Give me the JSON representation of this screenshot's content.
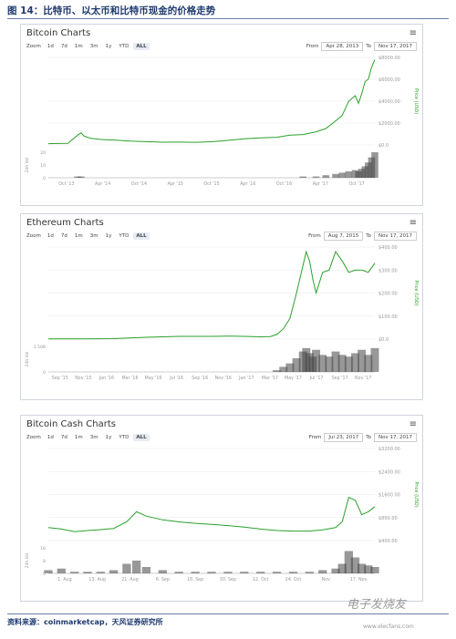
{
  "figure_title": "图 14：比特币、以太币和比特币现金的价格走势",
  "source": "资料来源：coinmarketcap，天风证券研究所",
  "watermark": "电子发烧友",
  "watermark_url": "www.elecfans.com",
  "colors": {
    "line": "#2aa02a",
    "volume": "#444444",
    "axis": "#999999",
    "grid": "#e8e8e8",
    "price_label": "#2aa02a"
  },
  "chart_data": [
    {
      "type": "line",
      "title": "Bitcoin Charts",
      "zoom_label": "Zoom",
      "zoom_buttons": [
        "1d",
        "7d",
        "1m",
        "3m",
        "1y",
        "YTD",
        "ALL"
      ],
      "zoom_active": "ALL",
      "from_label": "From",
      "from": "Apr 28, 2013",
      "to_label": "To",
      "to": "Nov 17, 2017",
      "ylabel": "Price (USD)",
      "y_ticks": [
        "$0.0",
        "$2000.00",
        "$4000.00",
        "$6000.00",
        "$8000.00"
      ],
      "ylim": [
        0,
        8000
      ],
      "vol_label": "24h Vol",
      "vol_ticks": [
        "0",
        "10",
        "20"
      ],
      "x_ticks": [
        "Oct '13",
        "Apr '14",
        "Oct '14",
        "Apr '15",
        "Oct '15",
        "Apr '16",
        "Oct '16",
        "Apr '17",
        "Oct '17"
      ],
      "x": [
        0,
        0.03,
        0.06,
        0.09,
        0.1,
        0.11,
        0.13,
        0.16,
        0.2,
        0.25,
        0.3,
        0.35,
        0.4,
        0.45,
        0.5,
        0.55,
        0.6,
        0.65,
        0.7,
        0.74,
        0.78,
        0.82,
        0.85,
        0.88,
        0.9,
        0.92,
        0.94,
        0.95,
        0.96,
        0.97,
        0.98,
        0.99,
        1.0
      ],
      "values": [
        120,
        130,
        150,
        900,
        1100,
        800,
        600,
        500,
        450,
        350,
        300,
        250,
        260,
        240,
        290,
        420,
        560,
        650,
        700,
        900,
        950,
        1200,
        1500,
        2200,
        2700,
        4000,
        4500,
        3800,
        4700,
        5800,
        6000,
        7100,
        7800
      ],
      "volume": [
        0,
        0,
        0,
        1,
        1,
        0,
        0,
        0,
        0,
        0,
        0,
        0,
        0,
        0,
        0,
        0,
        0,
        0,
        0,
        0,
        1,
        1,
        2,
        3,
        4,
        5,
        6,
        5,
        7,
        9,
        12,
        16,
        20
      ],
      "vlim": [
        0,
        20
      ]
    },
    {
      "type": "line",
      "title": "Ethereum Charts",
      "zoom_label": "Zoom",
      "zoom_buttons": [
        "1d",
        "7d",
        "1m",
        "3m",
        "1y",
        "YTD",
        "ALL"
      ],
      "zoom_active": "ALL",
      "from_label": "From",
      "from": "Aug 7, 2015",
      "to_label": "To",
      "to": "Nov 17, 2017",
      "ylabel": "Price (USD)",
      "y_ticks": [
        "$0.0",
        "$100.00",
        "$200.00",
        "$300.00",
        "$400.00"
      ],
      "ylim": [
        0,
        400
      ],
      "vol_label": "24h Vol",
      "vol_ticks": [
        "0",
        "1.50B"
      ],
      "x_ticks": [
        "Sep '15",
        "Nov '15",
        "Jan '16",
        "Mar '16",
        "May '16",
        "Jul '16",
        "Sep '16",
        "Nov '16",
        "Jan '17",
        "Mar '17",
        "May '17",
        "Jul '17",
        "Sep '17",
        "Nov '17"
      ],
      "x": [
        0,
        0.1,
        0.2,
        0.3,
        0.4,
        0.5,
        0.55,
        0.6,
        0.65,
        0.68,
        0.7,
        0.72,
        0.74,
        0.76,
        0.78,
        0.79,
        0.8,
        0.81,
        0.82,
        0.84,
        0.86,
        0.88,
        0.9,
        0.92,
        0.94,
        0.96,
        0.98,
        1.0
      ],
      "values": [
        1,
        1,
        2,
        8,
        12,
        12,
        13,
        12,
        10,
        11,
        20,
        45,
        90,
        200,
        320,
        380,
        340,
        260,
        200,
        290,
        300,
        380,
        340,
        290,
        300,
        300,
        290,
        330
      ],
      "volume": [
        0,
        0,
        0,
        0,
        0,
        0,
        0,
        0,
        0,
        0,
        0.1,
        0.3,
        0.5,
        0.8,
        1.2,
        1.4,
        1.1,
        0.9,
        1.3,
        1.0,
        0.9,
        1.2,
        1.0,
        0.9,
        1.1,
        1.3,
        1.0,
        1.4
      ],
      "vlim": [
        0,
        1.5
      ]
    },
    {
      "type": "line",
      "title": "Bitcoin Cash Charts",
      "zoom_label": "Zoom",
      "zoom_buttons": [
        "1d",
        "7d",
        "1m",
        "3m",
        "1y",
        "YTD",
        "ALL"
      ],
      "zoom_active": "ALL",
      "from_label": "From",
      "from": "Jul 23, 2017",
      "to_label": "To",
      "to": "Nov 17, 2017",
      "ylabel": "Price (USD)",
      "y_ticks": [
        "$400.00",
        "$800.00",
        "$1600.00",
        "$2400.00",
        "$3200.00"
      ],
      "ylim": [
        0,
        3200
      ],
      "vol_label": "24h Vol",
      "vol_ticks": [
        "0",
        "8",
        "16"
      ],
      "x_ticks": [
        "1. Aug",
        "13. Aug",
        "21. Aug",
        "6. Sep",
        "18. Sep",
        "30. Sep",
        "12. Oct",
        "24. Oct",
        "Nov",
        "17. Nov"
      ],
      "x": [
        0,
        0.04,
        0.08,
        0.12,
        0.16,
        0.2,
        0.24,
        0.27,
        0.3,
        0.35,
        0.4,
        0.45,
        0.5,
        0.55,
        0.6,
        0.65,
        0.7,
        0.75,
        0.8,
        0.84,
        0.88,
        0.9,
        0.92,
        0.94,
        0.96,
        0.98,
        1.0
      ],
      "values": [
        450,
        400,
        310,
        350,
        380,
        420,
        650,
        1000,
        850,
        720,
        650,
        600,
        560,
        520,
        470,
        400,
        350,
        330,
        330,
        370,
        450,
        650,
        1500,
        1400,
        900,
        1000,
        1180
      ],
      "volume": [
        2,
        3,
        1,
        1,
        1,
        2,
        6,
        8,
        4,
        2,
        1,
        1,
        1,
        1,
        1,
        1,
        1,
        1,
        1,
        2,
        3,
        6,
        14,
        10,
        6,
        5,
        4
      ],
      "vlim": [
        0,
        16
      ]
    }
  ]
}
